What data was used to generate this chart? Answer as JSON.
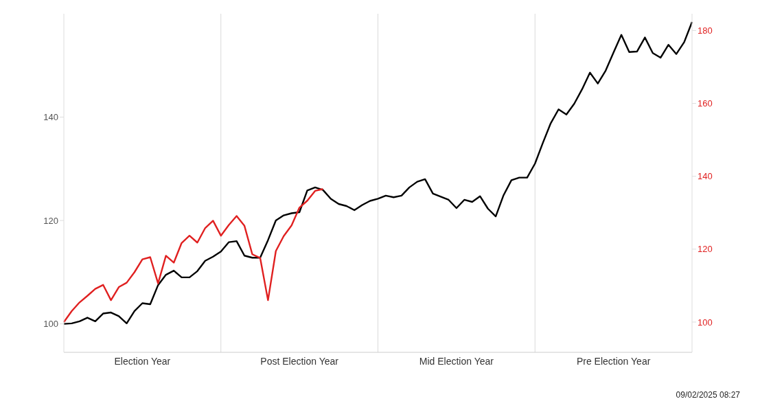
{
  "chart_data": {
    "type": "line",
    "grid": "x",
    "categories": [
      null,
      null,
      null,
      null,
      null,
      null,
      null,
      null,
      null,
      null,
      "Election Year",
      null,
      null,
      null,
      null,
      null,
      null,
      null,
      null,
      null,
      null,
      null,
      null,
      null,
      null,
      null,
      null,
      null,
      null,
      null,
      "Post Election Year",
      null,
      null,
      null,
      null,
      null,
      null,
      null,
      null,
      null,
      null,
      null,
      null,
      null,
      null,
      null,
      null,
      null,
      null,
      null,
      "Mid Election Year",
      null,
      null,
      null,
      null,
      null,
      null,
      null,
      null,
      null,
      null,
      null,
      null,
      null,
      null,
      null,
      null,
      null,
      null,
      null,
      "Pre Election Year",
      null,
      null,
      null,
      null,
      null,
      null,
      null,
      null,
      null,
      null
    ],
    "ylim": [
      94.5,
      160
    ],
    "yticks": [
      100,
      120,
      140
    ],
    "y2lim": [
      91.7,
      184.6
    ],
    "y2ticks": [
      100,
      120,
      140,
      160,
      180
    ],
    "annotations": [
      "09/02/2025 08:27"
    ],
    "series": [
      {
        "color": "#000000",
        "values": [
          100,
          100.1,
          100.5,
          101.2,
          100.5,
          102.0,
          102.2,
          101.5,
          100.1,
          102.5,
          104.0,
          103.8,
          107.5,
          109.5,
          110.3,
          109.0,
          109.0,
          110.2,
          112.2,
          113.0,
          114.0,
          115.8,
          116.0,
          113.2,
          112.8,
          112.8,
          116.2,
          120.0,
          121.0,
          121.4,
          121.6,
          125.8,
          126.4,
          125.9,
          124.2,
          123.2,
          122.8,
          122.0,
          123.0,
          123.8,
          124.2,
          124.8,
          124.5,
          124.8,
          126.4,
          127.5,
          128.0,
          125.2,
          124.6,
          124.0,
          122.4,
          124.0,
          123.6,
          124.7,
          122.3,
          120.8,
          124.9,
          127.8,
          128.3,
          128.3,
          131.0,
          135.0,
          138.8,
          141.5,
          140.5,
          142.6,
          145.4,
          148.6,
          146.5,
          149.0,
          152.5,
          155.9,
          152.6,
          152.7,
          155.4,
          152.4,
          151.5,
          154.0,
          152.2,
          154.5,
          158.4
        ]
      },
      {
        "color": "#e02020",
        "axis": "y2",
        "values": [
          100,
          103.0,
          105.4,
          107.2,
          109.1,
          110.2,
          106.0,
          109.6,
          110.8,
          113.7,
          117.2,
          117.8,
          110.6,
          118.2,
          116.3,
          121.7,
          123.7,
          121.8,
          125.8,
          127.8,
          123.7,
          126.6,
          129.1,
          126.4,
          118.6,
          117.6,
          106.0,
          119.5,
          123.6,
          126.5,
          131.4,
          133.3,
          136.0,
          136.5,
          null,
          null,
          null,
          null,
          null,
          null,
          null,
          null,
          null,
          null,
          null,
          null,
          null,
          null,
          null,
          null,
          null,
          null,
          null,
          null,
          null,
          null,
          null,
          null,
          null,
          null,
          null,
          null,
          null,
          null,
          null,
          null,
          null,
          null,
          null,
          null,
          null,
          null,
          null,
          null,
          null,
          null,
          null,
          null,
          null,
          null,
          null
        ]
      }
    ]
  }
}
